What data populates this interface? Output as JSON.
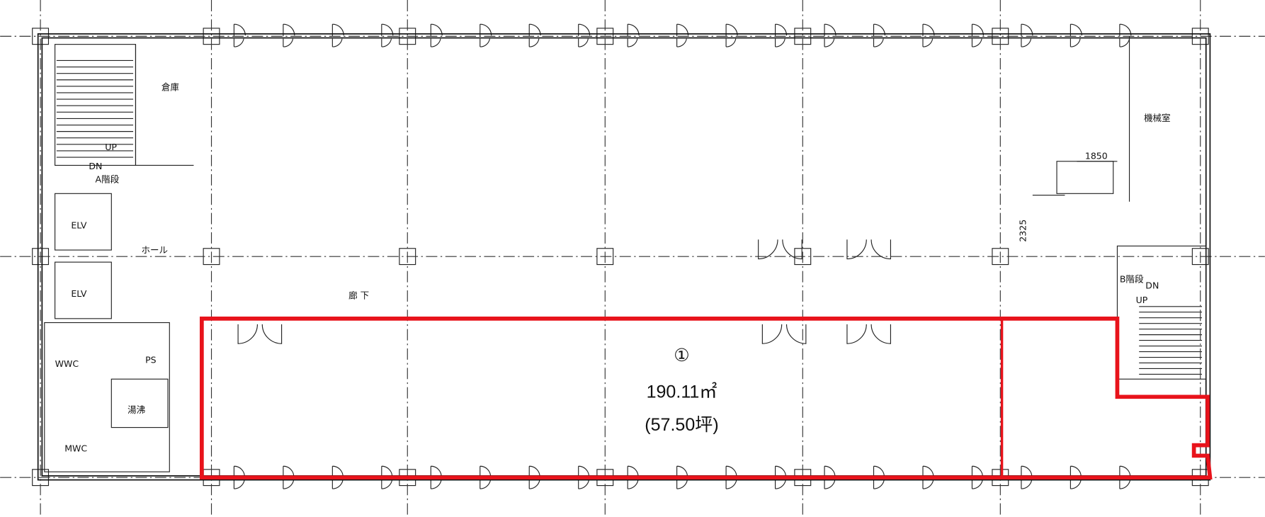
{
  "rooms": {
    "storage": "倉庫",
    "stair_a_up": "UP",
    "stair_a_dn": "DN",
    "stair_a": "A階段",
    "elv_1": "ELV",
    "elv_2": "ELV",
    "hall": "ホール",
    "corridor": "廊 下",
    "wwc": "WWC",
    "ps": "PS",
    "kitchenette": "湯沸",
    "mwc": "MWC",
    "machine_room": "機械室",
    "stair_b": "B階段",
    "stair_b_dn": "DN",
    "stair_b_up": "UP"
  },
  "dimensions": {
    "horizontal": 1850,
    "vertical": 2325
  },
  "unit": {
    "number": "①",
    "area": "190.11㎡",
    "tsubo": "(57.50坪)"
  }
}
